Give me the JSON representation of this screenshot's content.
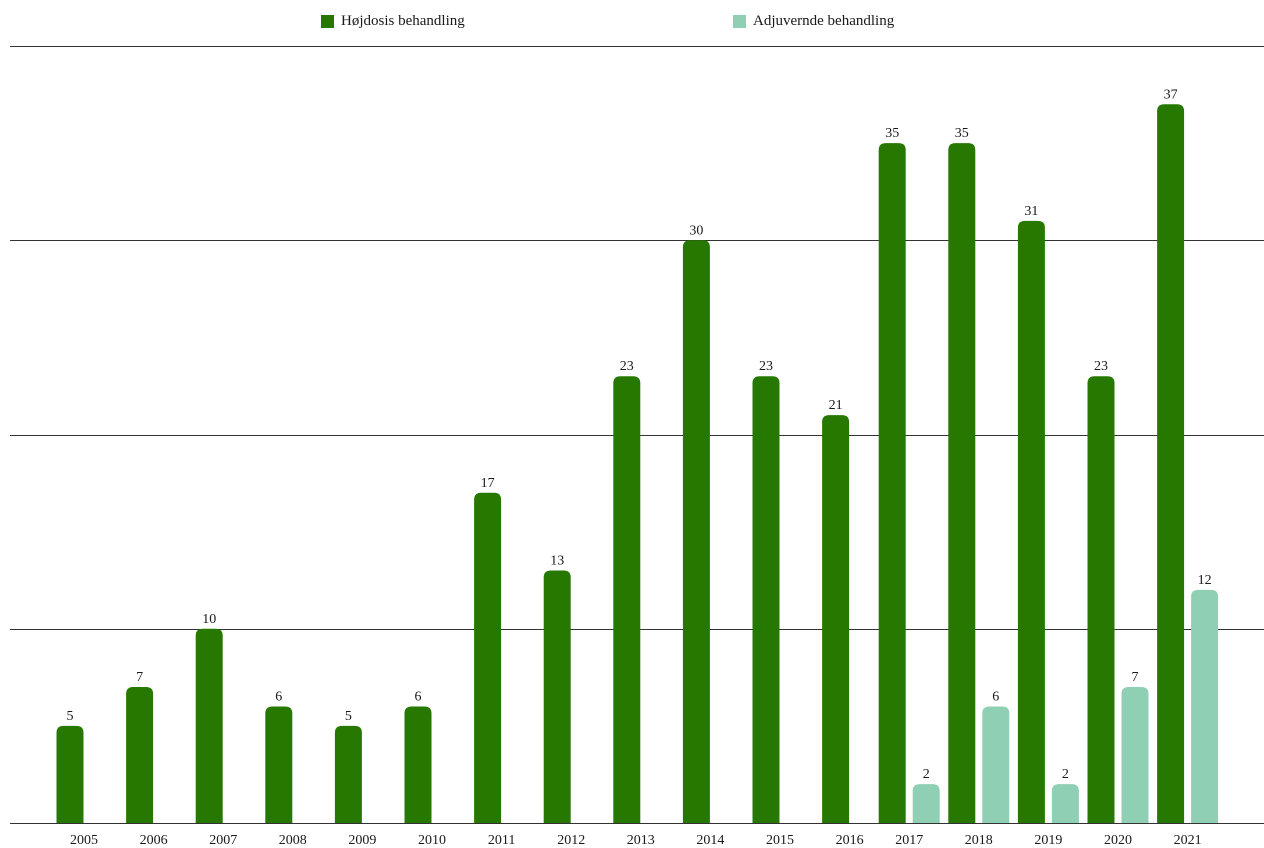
{
  "legend": [
    {
      "label": "Højdosis behandling",
      "color": "#267800"
    },
    {
      "label": "Adjuvernde behandling",
      "color": "#8fcfb3"
    }
  ],
  "chart_data": {
    "type": "bar",
    "categories": [
      "2005",
      "2006",
      "2007",
      "2008",
      "2009",
      "2010",
      "2011",
      "2012",
      "2013",
      "2014",
      "2015",
      "2016",
      "2017",
      "2018",
      "2019",
      "2020",
      "2021"
    ],
    "series": [
      {
        "name": "Højdosis behandling",
        "color": "#267800",
        "values": [
          5,
          7,
          10,
          6,
          5,
          6,
          17,
          13,
          23,
          30,
          23,
          21,
          35,
          35,
          31,
          23,
          37
        ]
      },
      {
        "name": "Adjuvernde behandling",
        "color": "#8fcfb3",
        "values": [
          null,
          null,
          null,
          null,
          null,
          null,
          null,
          null,
          null,
          null,
          null,
          null,
          2,
          6,
          2,
          7,
          12
        ]
      }
    ],
    "ylim": [
      0,
      40
    ],
    "gridlines": [
      10,
      20,
      30,
      40
    ],
    "grid": true,
    "legend_position": "top-center",
    "data_labels": true
  }
}
